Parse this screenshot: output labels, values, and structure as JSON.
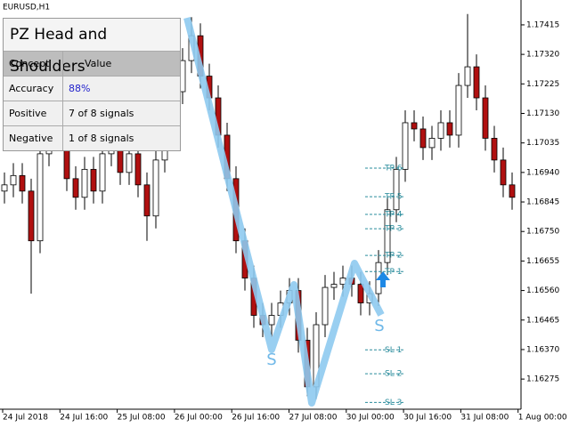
{
  "chart_data": {
    "type": "candlestick",
    "symbol_label": "EURUSD,H1",
    "ylim": [
      1.16178,
      1.17495
    ],
    "yticks": [
      1.17415,
      {
        "value": 1.1732,
        "label": "1.17320"
      },
      1.17225,
      {
        "value": 1.1713,
        "label": "1.17130"
      },
      1.17035,
      {
        "value": 1.1694,
        "label": "1.16940"
      },
      1.16845,
      {
        "value": 1.1675,
        "label": "1.16750"
      },
      1.16655,
      {
        "value": 1.1656,
        "label": "1.16560"
      },
      1.16465,
      {
        "value": 1.1637,
        "label": "1.16370"
      },
      1.16275
    ],
    "x_labels": [
      "24 Jul 2018",
      "24 Jul 16:00",
      "25 Jul 08:00",
      "26 Jul 00:00",
      "26 Jul 16:00",
      "27 Jul 08:00",
      "30 Jul 00:00",
      "30 Jul 16:00",
      "31 Jul 08:00",
      "1 Aug 00:00"
    ],
    "candles": {
      "open": [
        1.1688,
        1.169,
        1.1693,
        1.1688,
        1.1672,
        1.17,
        1.1715,
        1.1705,
        1.1692,
        1.1686,
        1.1695,
        1.1688,
        1.17,
        1.1712,
        1.1694,
        1.17,
        1.169,
        1.168,
        1.1698,
        1.1705,
        1.172,
        1.173,
        1.1738,
        1.1725,
        1.1718,
        1.1706,
        1.1692,
        1.1672,
        1.166,
        1.1648,
        1.1645,
        1.1648,
        1.1652,
        1.1656,
        1.164,
        1.1625,
        1.1645,
        1.1657,
        1.1658,
        1.166,
        1.1658,
        1.1652,
        1.1655,
        1.1665,
        1.1682,
        1.1695,
        1.171,
        1.1708,
        1.1702,
        1.1705,
        1.171,
        1.1706,
        1.1722,
        1.1728,
        1.1718,
        1.1705,
        1.1698,
        1.169
      ],
      "high": [
        1.1694,
        1.1697,
        1.1697,
        1.1692,
        1.1704,
        1.1719,
        1.1719,
        1.1709,
        1.1696,
        1.1699,
        1.1699,
        1.1704,
        1.1716,
        1.1716,
        1.1704,
        1.1704,
        1.1694,
        1.1702,
        1.1709,
        1.1724,
        1.1734,
        1.1744,
        1.1742,
        1.1729,
        1.1722,
        1.171,
        1.1696,
        1.1676,
        1.1664,
        1.1652,
        1.1652,
        1.1656,
        1.166,
        1.166,
        1.1644,
        1.1649,
        1.1661,
        1.1662,
        1.1664,
        1.1664,
        1.1662,
        1.1659,
        1.1669,
        1.1686,
        1.1699,
        1.1714,
        1.1714,
        1.1712,
        1.1709,
        1.1714,
        1.1714,
        1.1726,
        1.1745,
        1.1732,
        1.1722,
        1.1709,
        1.1702,
        1.1694
      ],
      "low": [
        1.1684,
        1.1686,
        1.1684,
        1.1655,
        1.1668,
        1.1696,
        1.1701,
        1.1688,
        1.1682,
        1.1682,
        1.1684,
        1.1684,
        1.1696,
        1.169,
        1.169,
        1.1686,
        1.1672,
        1.1676,
        1.1694,
        1.1701,
        1.1716,
        1.1726,
        1.1721,
        1.1714,
        1.1702,
        1.1688,
        1.1668,
        1.1656,
        1.1644,
        1.1641,
        1.1641,
        1.1644,
        1.1648,
        1.1636,
        1.1622,
        1.1621,
        1.1641,
        1.1653,
        1.1654,
        1.1654,
        1.1648,
        1.1648,
        1.1651,
        1.1661,
        1.1678,
        1.1691,
        1.1704,
        1.1698,
        1.1698,
        1.1701,
        1.1702,
        1.1702,
        1.1718,
        1.1714,
        1.1701,
        1.1694,
        1.1686,
        1.1682
      ],
      "close": [
        1.169,
        1.1693,
        1.1688,
        1.1672,
        1.17,
        1.1715,
        1.1705,
        1.1692,
        1.1686,
        1.1695,
        1.1688,
        1.17,
        1.1712,
        1.1694,
        1.17,
        1.169,
        1.168,
        1.1698,
        1.1705,
        1.172,
        1.173,
        1.1738,
        1.1725,
        1.1718,
        1.1706,
        1.1692,
        1.1672,
        1.166,
        1.1648,
        1.1645,
        1.1648,
        1.1652,
        1.1656,
        1.164,
        1.1625,
        1.1645,
        1.1657,
        1.1658,
        1.166,
        1.1658,
        1.1652,
        1.1655,
        1.1665,
        1.1682,
        1.1695,
        1.171,
        1.1708,
        1.1702,
        1.1705,
        1.171,
        1.1706,
        1.1722,
        1.1728,
        1.1718,
        1.1705,
        1.1698,
        1.169,
        1.1686
      ]
    },
    "up_color": "#ffffff",
    "down_color": "#b01010",
    "levels": [
      {
        "label": "TP 6",
        "value": 1.16954
      },
      {
        "label": "TP 5",
        "value": 1.16862
      },
      {
        "label": "TP 4",
        "value": 1.16805
      },
      {
        "label": "TP 3",
        "value": 1.16759
      },
      {
        "label": "TP 2",
        "value": 1.16673
      },
      {
        "label": "TP 1",
        "value": 1.16621
      },
      {
        "label": "SL 1",
        "value": 1.16369
      },
      {
        "label": "SL 2",
        "value": 1.16292
      },
      {
        "label": "SL 3",
        "value": 1.162
      }
    ],
    "pattern_labels": [
      "S",
      "S"
    ]
  },
  "panel": {
    "title": "PZ Head and Shoulders",
    "header": [
      "Concept",
      "Value"
    ],
    "rows": [
      [
        "Accuracy",
        "88%"
      ],
      [
        "Positive",
        "7 of 8 signals"
      ],
      [
        "Negative",
        "1 of 8 signals"
      ]
    ]
  }
}
